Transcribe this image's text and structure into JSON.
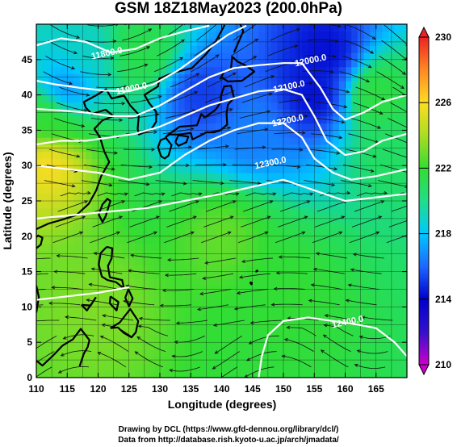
{
  "title": "GSM 18Z18May2023 (200.0hPa)",
  "credits": {
    "line1": "Drawing by DCL (https://www.gfd-dennou.org/library/dcl/)",
    "line2": "Data from http://database.rish.kyoto-u.ac.jp/arch/jmadata/"
  },
  "chart_data": {
    "type": "heatmap",
    "title": "GSM 18Z18May2023 (200.0hPa)",
    "xlabel": "Longitude (degrees)",
    "ylabel": "Latitude (degrees)",
    "xlim": [
      110,
      170
    ],
    "ylim": [
      0,
      50
    ],
    "x_ticks": [
      110,
      115,
      120,
      125,
      130,
      135,
      140,
      145,
      150,
      155,
      160,
      165
    ],
    "y_ticks": [
      0,
      5,
      10,
      15,
      20,
      25,
      30,
      35,
      40,
      45
    ],
    "grid": true,
    "colorbar": {
      "ticks": [
        210,
        214,
        218,
        222,
        226,
        230
      ],
      "range": [
        210,
        230
      ],
      "colors": [
        "#cc00cc",
        "#0000cc",
        "#1e66ff",
        "#00c8ff",
        "#22dd66",
        "#33dd33",
        "#aadd22",
        "#ffdd22",
        "#ff8822",
        "#ee2222"
      ]
    },
    "fields": [
      "temperature (shaded)",
      "geopotential height (white contours)",
      "wind (streamlines)"
    ],
    "contour_labels": [
      {
        "text": "11800.0",
        "lon": 121.5,
        "lat": 45.5
      },
      {
        "text": "11900.0",
        "lon": 125.5,
        "lat": 40.5
      },
      {
        "text": "12000.0",
        "lon": 154.5,
        "lat": 44.5
      },
      {
        "text": "12100.0",
        "lon": 151.0,
        "lat": 40.8
      },
      {
        "text": "12200.0",
        "lon": 150.8,
        "lat": 36.0
      },
      {
        "text": "12300.0",
        "lon": 148.0,
        "lat": 30.0
      },
      {
        "text": "12400.0",
        "lon": 160.5,
        "lat": 7.5
      }
    ],
    "temperature_regions": [
      {
        "lon": 112,
        "lat": 30.5,
        "temp": 225.5
      },
      {
        "lon": 112,
        "lat": 36,
        "temp": 221
      },
      {
        "lon": 115,
        "lat": 41,
        "temp": 215.5
      },
      {
        "lon": 118,
        "lat": 46,
        "temp": 217.5
      },
      {
        "lon": 127,
        "lat": 46,
        "temp": 220
      },
      {
        "lon": 137,
        "lat": 40,
        "temp": 213.5
      },
      {
        "lon": 145,
        "lat": 35,
        "temp": 215
      },
      {
        "lon": 155,
        "lat": 40,
        "temp": 212.5
      },
      {
        "lon": 157,
        "lat": 46,
        "temp": 212.5
      },
      {
        "lon": 165,
        "lat": 40,
        "temp": 220.5
      },
      {
        "lon": 167,
        "lat": 32,
        "temp": 219
      },
      {
        "lon": 140,
        "lat": 20,
        "temp": 222
      },
      {
        "lon": 120,
        "lat": 10,
        "temp": 222.5
      },
      {
        "lon": 150,
        "lat": 12,
        "temp": 221
      }
    ]
  }
}
